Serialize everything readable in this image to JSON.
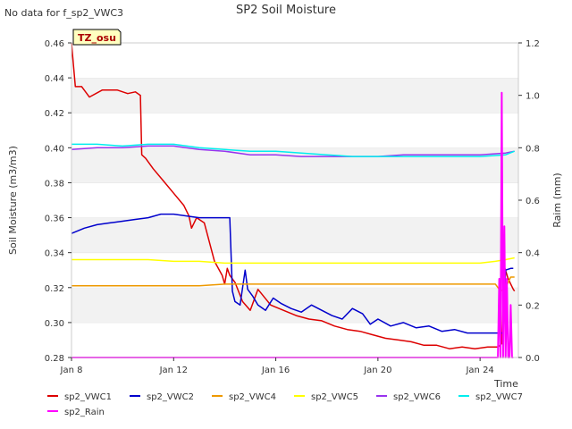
{
  "chart_data": {
    "type": "line",
    "title": "SP2 Soil Moisture",
    "note_top_left": "No data for f_sp2_VWC3",
    "badge": "TZ_osu",
    "xlabel": "Time",
    "ylabel": "Soil Moisture (m3/m3)",
    "y2label": "Raim (mm)",
    "xlim": [
      8.0,
      25.5
    ],
    "ylim": [
      0.28,
      0.46
    ],
    "y2lim": [
      0.0,
      1.2
    ],
    "x_ticks": [
      {
        "value": 8,
        "label": "Jan 8"
      },
      {
        "value": 12,
        "label": "Jan 12"
      },
      {
        "value": 16,
        "label": "Jan 16"
      },
      {
        "value": 20,
        "label": "Jan 20"
      },
      {
        "value": 24,
        "label": "Jan 24"
      }
    ],
    "y_ticks": [
      {
        "value": 0.28,
        "label": "0.28"
      },
      {
        "value": 0.3,
        "label": "0.30"
      },
      {
        "value": 0.32,
        "label": "0.32"
      },
      {
        "value": 0.34,
        "label": "0.34"
      },
      {
        "value": 0.36,
        "label": "0.36"
      },
      {
        "value": 0.38,
        "label": "0.38"
      },
      {
        "value": 0.4,
        "label": "0.40"
      },
      {
        "value": 0.42,
        "label": "0.42"
      },
      {
        "value": 0.44,
        "label": "0.44"
      },
      {
        "value": 0.46,
        "label": "0.46"
      }
    ],
    "y2_ticks": [
      {
        "value": 0.0,
        "label": "0.0"
      },
      {
        "value": 0.2,
        "label": "0.2"
      },
      {
        "value": 0.4,
        "label": "0.4"
      },
      {
        "value": 0.6,
        "label": "0.6"
      },
      {
        "value": 0.8,
        "label": "0.8"
      },
      {
        "value": 1.0,
        "label": "1.0"
      },
      {
        "value": 1.2,
        "label": "1.2"
      }
    ],
    "grid": "horizontal bands",
    "legend_position": "bottom",
    "series": [
      {
        "name": "sp2_VWC1",
        "color": "#dd0000",
        "axis": "left",
        "x": [
          8.0,
          8.15,
          8.4,
          8.7,
          9.2,
          9.8,
          10.2,
          10.5,
          10.7,
          10.75,
          10.9,
          11.2,
          11.6,
          12.0,
          12.4,
          12.6,
          12.7,
          12.9,
          13.2,
          13.6,
          13.9,
          14.0,
          14.1,
          14.2,
          14.4,
          14.7,
          15.0,
          15.3,
          15.8,
          16.3,
          16.8,
          17.3,
          17.8,
          18.3,
          18.8,
          19.3,
          19.8,
          20.3,
          20.8,
          21.3,
          21.8,
          22.3,
          22.8,
          23.3,
          23.8,
          24.3,
          24.7,
          24.85,
          24.95,
          25.1,
          25.3,
          25.35
        ],
        "y": [
          0.46,
          0.435,
          0.435,
          0.429,
          0.433,
          0.433,
          0.431,
          0.432,
          0.43,
          0.396,
          0.394,
          0.388,
          0.381,
          0.374,
          0.367,
          0.361,
          0.354,
          0.36,
          0.357,
          0.335,
          0.327,
          0.322,
          0.331,
          0.327,
          0.323,
          0.312,
          0.307,
          0.319,
          0.31,
          0.307,
          0.304,
          0.302,
          0.301,
          0.298,
          0.296,
          0.295,
          0.293,
          0.291,
          0.29,
          0.289,
          0.287,
          0.287,
          0.285,
          0.286,
          0.285,
          0.286,
          0.286,
          0.288,
          0.332,
          0.325,
          0.319,
          0.318
        ]
      },
      {
        "name": "sp2_VWC2",
        "color": "#0000cc",
        "axis": "left",
        "x": [
          8.0,
          8.5,
          9.0,
          9.5,
          10.0,
          10.5,
          11.0,
          11.5,
          12.0,
          12.5,
          13.0,
          13.5,
          14.0,
          14.2,
          14.3,
          14.4,
          14.6,
          14.8,
          14.9,
          15.1,
          15.3,
          15.6,
          15.9,
          16.2,
          16.6,
          17.0,
          17.4,
          17.8,
          18.2,
          18.6,
          19.0,
          19.4,
          19.7,
          20.0,
          20.5,
          21.0,
          21.5,
          22.0,
          22.5,
          23.0,
          23.5,
          24.0,
          24.5,
          24.9,
          25.0,
          25.2,
          25.3
        ],
        "y": [
          0.351,
          0.354,
          0.356,
          0.357,
          0.358,
          0.359,
          0.36,
          0.362,
          0.362,
          0.361,
          0.36,
          0.36,
          0.36,
          0.36,
          0.318,
          0.312,
          0.31,
          0.33,
          0.319,
          0.315,
          0.31,
          0.307,
          0.314,
          0.311,
          0.308,
          0.306,
          0.31,
          0.307,
          0.304,
          0.302,
          0.308,
          0.305,
          0.299,
          0.302,
          0.298,
          0.3,
          0.297,
          0.298,
          0.295,
          0.296,
          0.294,
          0.294,
          0.294,
          0.294,
          0.33,
          0.331,
          0.331
        ]
      },
      {
        "name": "sp2_VWC4",
        "color": "#ee9900",
        "axis": "left",
        "x": [
          8.0,
          9.0,
          10.0,
          11.0,
          12.0,
          13.0,
          14.0,
          15.0,
          16.0,
          17.0,
          18.0,
          19.0,
          20.0,
          21.0,
          22.0,
          23.0,
          24.0,
          24.6,
          24.8,
          25.0,
          25.2,
          25.35
        ],
        "y": [
          0.321,
          0.321,
          0.321,
          0.321,
          0.321,
          0.321,
          0.322,
          0.322,
          0.322,
          0.322,
          0.322,
          0.322,
          0.322,
          0.322,
          0.322,
          0.322,
          0.322,
          0.322,
          0.318,
          0.32,
          0.326,
          0.326
        ]
      },
      {
        "name": "sp2_VWC5",
        "color": "#ffff00",
        "axis": "left",
        "x": [
          8.0,
          9.0,
          10.0,
          11.0,
          12.0,
          13.0,
          14.0,
          15.0,
          16.0,
          17.0,
          18.0,
          19.0,
          20.0,
          21.0,
          22.0,
          23.0,
          24.0,
          24.6,
          25.0,
          25.35
        ],
        "y": [
          0.336,
          0.336,
          0.336,
          0.336,
          0.335,
          0.335,
          0.334,
          0.334,
          0.334,
          0.334,
          0.334,
          0.334,
          0.334,
          0.334,
          0.334,
          0.334,
          0.334,
          0.335,
          0.336,
          0.337
        ]
      },
      {
        "name": "sp2_VWC6",
        "color": "#9933ee",
        "axis": "left",
        "x": [
          8.0,
          9.0,
          10.0,
          11.0,
          12.0,
          13.0,
          14.0,
          15.0,
          16.0,
          17.0,
          18.0,
          19.0,
          20.0,
          21.0,
          22.0,
          23.0,
          24.0,
          25.0,
          25.35
        ],
        "y": [
          0.399,
          0.4,
          0.4,
          0.401,
          0.401,
          0.399,
          0.398,
          0.396,
          0.396,
          0.395,
          0.395,
          0.395,
          0.395,
          0.396,
          0.396,
          0.396,
          0.396,
          0.397,
          0.398
        ]
      },
      {
        "name": "sp2_VWC7",
        "color": "#00eeee",
        "axis": "left",
        "x": [
          8.0,
          9.0,
          10.0,
          11.0,
          12.0,
          13.0,
          14.0,
          15.0,
          16.0,
          17.0,
          18.0,
          19.0,
          20.0,
          21.0,
          22.0,
          23.0,
          24.0,
          25.0,
          25.35
        ],
        "y": [
          0.402,
          0.402,
          0.401,
          0.402,
          0.402,
          0.4,
          0.399,
          0.398,
          0.398,
          0.397,
          0.396,
          0.395,
          0.395,
          0.395,
          0.395,
          0.395,
          0.395,
          0.396,
          0.398
        ]
      },
      {
        "name": "sp2_Rain",
        "color": "#ff00ff",
        "axis": "right",
        "x": [
          8.0,
          24.7,
          24.75,
          24.8,
          24.85,
          24.9,
          24.95,
          25.0,
          25.05,
          25.1,
          25.15,
          25.2,
          25.25,
          25.3
        ],
        "y": [
          0.0,
          0.0,
          0.3,
          0.0,
          1.01,
          0.0,
          0.5,
          0.0,
          0.3,
          0.0,
          0.0,
          0.2,
          0.0,
          0.0
        ]
      }
    ]
  }
}
